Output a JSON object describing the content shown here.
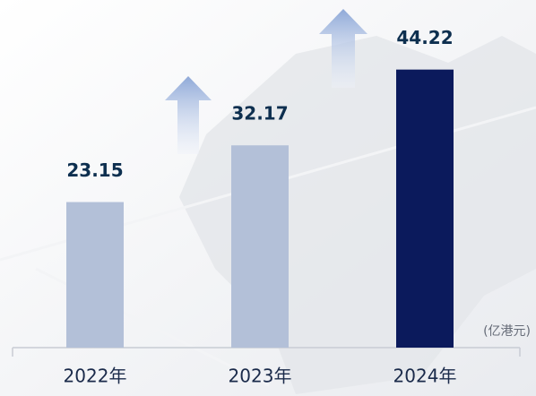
{
  "chart_data": {
    "type": "bar",
    "unit_label": "(亿港元)",
    "categories": [
      "2022年",
      "2023年",
      "2024年"
    ],
    "values": [
      23.15,
      32.17,
      44.22
    ],
    "colors": [
      "#b3c0d8",
      "#b3c0d8",
      "#0b1a5c"
    ],
    "ylim": [
      0,
      55
    ]
  }
}
